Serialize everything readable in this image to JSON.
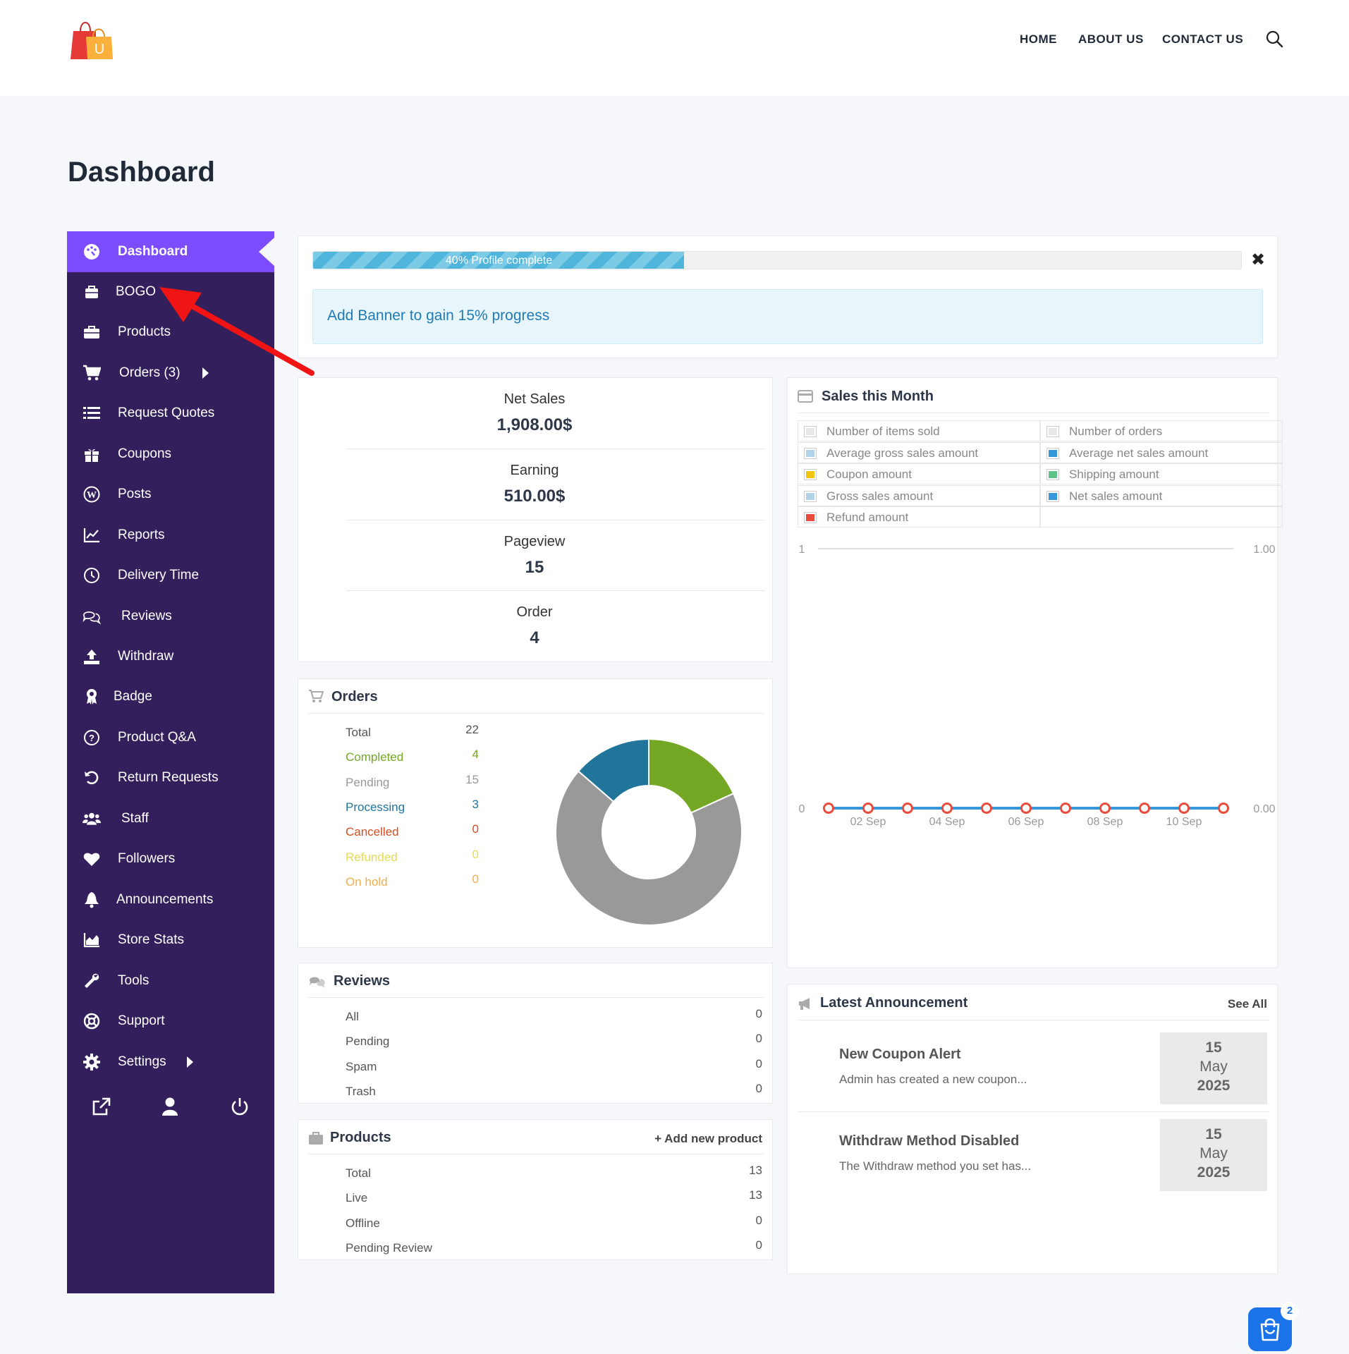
{
  "header": {
    "nav": [
      "HOME",
      "ABOUT US",
      "CONTACT US"
    ],
    "logo_letter": "U"
  },
  "page": {
    "title": "Dashboard"
  },
  "sidebar": {
    "accent": "#7c4dff",
    "background": "#321f5c",
    "items": [
      {
        "label": "Dashboard",
        "icon": "palette-icon"
      },
      {
        "label": "BOGO",
        "icon": "bag-icon"
      },
      {
        "label": "Products",
        "icon": "briefcase-icon"
      },
      {
        "label": "Orders (3)",
        "icon": "cart-icon"
      },
      {
        "label": "Request Quotes",
        "icon": "list-icon"
      },
      {
        "label": "Coupons",
        "icon": "gift-icon"
      },
      {
        "label": "Posts",
        "icon": "wordpress-icon"
      },
      {
        "label": "Reports",
        "icon": "line-chart-icon"
      },
      {
        "label": "Delivery Time",
        "icon": "clock-icon"
      },
      {
        "label": "Reviews",
        "icon": "comments-icon"
      },
      {
        "label": "Withdraw",
        "icon": "upload-icon"
      },
      {
        "label": "Badge",
        "icon": "award-icon"
      },
      {
        "label": "Product Q&A",
        "icon": "question-icon"
      },
      {
        "label": "Return Requests",
        "icon": "undo-icon"
      },
      {
        "label": "Staff",
        "icon": "users-icon"
      },
      {
        "label": "Followers",
        "icon": "heart-icon"
      },
      {
        "label": "Announcements",
        "icon": "bell-icon"
      },
      {
        "label": "Store Stats",
        "icon": "area-chart-icon"
      },
      {
        "label": "Tools",
        "icon": "wrench-icon"
      },
      {
        "label": "Support",
        "icon": "lifebuoy-icon"
      },
      {
        "label": "Settings",
        "icon": "gear-icon"
      }
    ],
    "footer_icons": [
      "external-link-icon",
      "user-icon",
      "power-icon"
    ]
  },
  "profile": {
    "progress_percent": 40,
    "progress_text": "40% Profile complete",
    "alert": "Add Banner to gain 15% progress",
    "close": "✖"
  },
  "stats": [
    {
      "label": "Net Sales",
      "value": "1,908.00$"
    },
    {
      "label": "Earning",
      "value": "510.00$"
    },
    {
      "label": "Pageview",
      "value": "15"
    },
    {
      "label": "Order",
      "value": "4"
    }
  ],
  "orders": {
    "title": "Orders",
    "rows": [
      {
        "label": "Total",
        "value": "22",
        "color": "#555555"
      },
      {
        "label": "Completed",
        "value": "4",
        "color": "#73a724"
      },
      {
        "label": "Pending",
        "value": "15",
        "color": "#999999"
      },
      {
        "label": "Processing",
        "value": "3",
        "color": "#21759b"
      },
      {
        "label": "Cancelled",
        "value": "0",
        "color": "#d54e21"
      },
      {
        "label": "Refunded",
        "value": "0",
        "color": "#e6db55"
      },
      {
        "label": "On hold",
        "value": "0",
        "color": "#f0ad4e"
      }
    ]
  },
  "reviews": {
    "title": "Reviews",
    "rows": [
      {
        "label": "All",
        "value": "0"
      },
      {
        "label": "Pending",
        "value": "0"
      },
      {
        "label": "Spam",
        "value": "0"
      },
      {
        "label": "Trash",
        "value": "0"
      }
    ]
  },
  "products": {
    "title": "Products",
    "add_link": "+ Add new product",
    "rows": [
      {
        "label": "Total",
        "value": "13"
      },
      {
        "label": "Live",
        "value": "13"
      },
      {
        "label": "Offline",
        "value": "0"
      },
      {
        "label": "Pending Review",
        "value": "0"
      }
    ]
  },
  "sales": {
    "title": "Sales this Month",
    "legend": [
      {
        "label": "Number of items sold",
        "color": "#e8e8e8"
      },
      {
        "label": "Number of orders",
        "color": "#e8e8e8"
      },
      {
        "label": "Average gross sales amount",
        "color": "#b1d4ea"
      },
      {
        "label": "Average net sales amount",
        "color": "#3498db"
      },
      {
        "label": "Coupon amount",
        "color": "#f1c40f"
      },
      {
        "label": "Shipping amount",
        "color": "#5cc488"
      },
      {
        "label": "Gross sales amount",
        "color": "#b1d4ea"
      },
      {
        "label": "Net sales amount",
        "color": "#3498db"
      },
      {
        "label": "Refund amount",
        "color": "#e74c3c"
      }
    ]
  },
  "chart_data": {
    "type": "line",
    "title": "",
    "x": [
      "01 Sep",
      "02 Sep",
      "03 Sep",
      "04 Sep",
      "05 Sep",
      "06 Sep",
      "07 Sep",
      "08 Sep",
      "09 Sep",
      "10 Sep",
      "11 Sep"
    ],
    "tick_labels": [
      "02 Sep",
      "04 Sep",
      "06 Sep",
      "08 Sep",
      "10 Sep"
    ],
    "series": [
      {
        "values": [
          0,
          0,
          0,
          0,
          0,
          0,
          0,
          0,
          0,
          0,
          0
        ],
        "color": "#3498db",
        "marker_color": "#e74c3c"
      }
    ],
    "y_left_ticks": [
      "0",
      "1"
    ],
    "y_right_ticks": [
      "0.00",
      "1.00"
    ],
    "ylim": [
      0,
      1
    ],
    "grid": false
  },
  "orders_pie": {
    "type": "pie",
    "categories": [
      "Completed",
      "Pending",
      "Processing"
    ],
    "values": [
      4,
      15,
      3
    ],
    "colors": [
      "#73a724",
      "#999999",
      "#21759b"
    ]
  },
  "announcements": {
    "title": "Latest Announcement",
    "see_all": "See All",
    "items": [
      {
        "title": "New Coupon Alert",
        "excerpt": "Admin has created a new coupon...",
        "day": "15",
        "month": "May",
        "year": "2025"
      },
      {
        "title": "Withdraw Method Disabled",
        "excerpt": "The Withdraw method you set has...",
        "day": "15",
        "month": "May",
        "year": "2025"
      }
    ]
  },
  "cart": {
    "count": "2"
  }
}
